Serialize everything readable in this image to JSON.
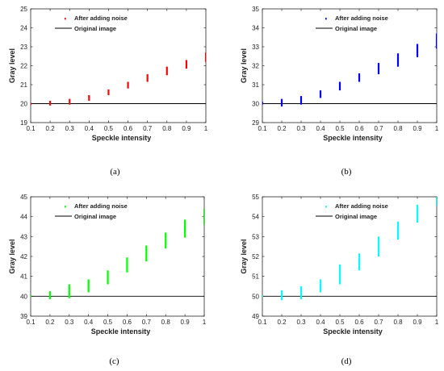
{
  "chart_data": [
    {
      "type": "scatter",
      "panel_label": "(a)",
      "xlabel": "Speckle intensity",
      "ylabel": "Gray level",
      "xlim": [
        0.1,
        1
      ],
      "ylim": [
        19,
        25
      ],
      "xticks": [
        "0.1",
        "0.2",
        "0.3",
        "0.4",
        "0.5",
        "0.6",
        "0.7",
        "0.8",
        "0.9",
        "1"
      ],
      "yticks": [
        "19",
        "20",
        "21",
        "22",
        "23",
        "24",
        "25"
      ],
      "grid": false,
      "legend_position": "top-center",
      "series": [
        {
          "name": "After adding noise",
          "color": "#ff0000",
          "marker": "vertical-range",
          "x": [
            0.1,
            0.2,
            0.3,
            0.4,
            0.5,
            0.6,
            0.7,
            0.8,
            0.9,
            1.0
          ],
          "y_low": [
            19.95,
            19.9,
            19.95,
            20.15,
            20.45,
            20.8,
            21.15,
            21.5,
            21.85,
            22.2
          ],
          "y_high": [
            20.05,
            20.15,
            20.25,
            20.45,
            20.75,
            21.15,
            21.55,
            21.95,
            22.3,
            22.7
          ]
        },
        {
          "name": "Original image",
          "color": "#000000",
          "marker": "line",
          "y": 20
        }
      ]
    },
    {
      "type": "scatter",
      "panel_label": "(b)",
      "xlabel": "Speckle intensity",
      "ylabel": "Gray level",
      "xlim": [
        0.1,
        1
      ],
      "ylim": [
        29,
        35
      ],
      "xticks": [
        "0.1",
        "0.2",
        "0.3",
        "0.4",
        "0.5",
        "0.6",
        "0.7",
        "0.8",
        "0.9",
        "1"
      ],
      "yticks": [
        "29",
        "30",
        "31",
        "32",
        "33",
        "34",
        "35"
      ],
      "grid": false,
      "legend_position": "top-right",
      "series": [
        {
          "name": "After adding noise",
          "color": "#0000ff",
          "marker": "vertical-range",
          "x": [
            0.1,
            0.2,
            0.3,
            0.4,
            0.5,
            0.6,
            0.7,
            0.8,
            0.9,
            1.0
          ],
          "y_low": [
            29.95,
            29.85,
            29.95,
            30.3,
            30.7,
            31.15,
            31.55,
            31.95,
            32.45,
            32.9
          ],
          "y_high": [
            30.1,
            30.25,
            30.4,
            30.7,
            31.15,
            31.6,
            32.15,
            32.65,
            33.15,
            33.7
          ]
        },
        {
          "name": "Original image",
          "color": "#000000",
          "marker": "line",
          "y": 30
        }
      ]
    },
    {
      "type": "scatter",
      "panel_label": "(c)",
      "xlabel": "Speckle intensity",
      "ylabel": "Gray level",
      "xlim": [
        0.1,
        1
      ],
      "ylim": [
        39,
        45
      ],
      "xticks": [
        "0.1",
        "0.2",
        "0.3",
        "0.4",
        "0.5",
        "0.6",
        "0.7",
        "0.8",
        "0.9",
        "1"
      ],
      "yticks": [
        "39",
        "40",
        "41",
        "42",
        "43",
        "44",
        "45"
      ],
      "grid": false,
      "legend_position": "top-center",
      "series": [
        {
          "name": "After adding noise",
          "color": "#00ff00",
          "marker": "vertical-range",
          "x": [
            0.1,
            0.2,
            0.3,
            0.4,
            0.5,
            0.6,
            0.7,
            0.8,
            0.9,
            1.0
          ],
          "y_low": [
            39.95,
            39.85,
            39.9,
            40.2,
            40.6,
            41.2,
            41.75,
            42.4,
            42.95,
            43.6
          ],
          "y_high": [
            40.05,
            40.25,
            40.6,
            40.85,
            41.3,
            41.95,
            42.55,
            43.2,
            43.85,
            44.4
          ]
        },
        {
          "name": "Original image",
          "color": "#000000",
          "marker": "line",
          "y": 40
        }
      ]
    },
    {
      "type": "scatter",
      "panel_label": "(d)",
      "xlabel": "Speckle intensity",
      "ylabel": "Gray level",
      "xlim": [
        0.1,
        1
      ],
      "ylim": [
        49,
        55
      ],
      "xticks": [
        "0.1",
        "0.2",
        "0.3",
        "0.4",
        "0.5",
        "0.6",
        "0.7",
        "0.8",
        "0.9",
        "1"
      ],
      "yticks": [
        "49",
        "50",
        "51",
        "52",
        "53",
        "54",
        "55"
      ],
      "grid": false,
      "legend_position": "top-right",
      "series": [
        {
          "name": "After adding noise",
          "color": "#00ffff",
          "marker": "vertical-range",
          "x": [
            0.1,
            0.2,
            0.3,
            0.4,
            0.5,
            0.6,
            0.7,
            0.8,
            0.9,
            1.0
          ],
          "y_low": [
            49.95,
            49.8,
            49.85,
            50.2,
            50.6,
            51.3,
            52.0,
            52.85,
            53.7,
            54.55
          ],
          "y_high": [
            50.05,
            50.3,
            50.5,
            50.85,
            51.6,
            52.15,
            53.0,
            53.75,
            54.6,
            55.0
          ]
        },
        {
          "name": "Original image",
          "color": "#000000",
          "marker": "line",
          "y": 50
        }
      ]
    }
  ]
}
